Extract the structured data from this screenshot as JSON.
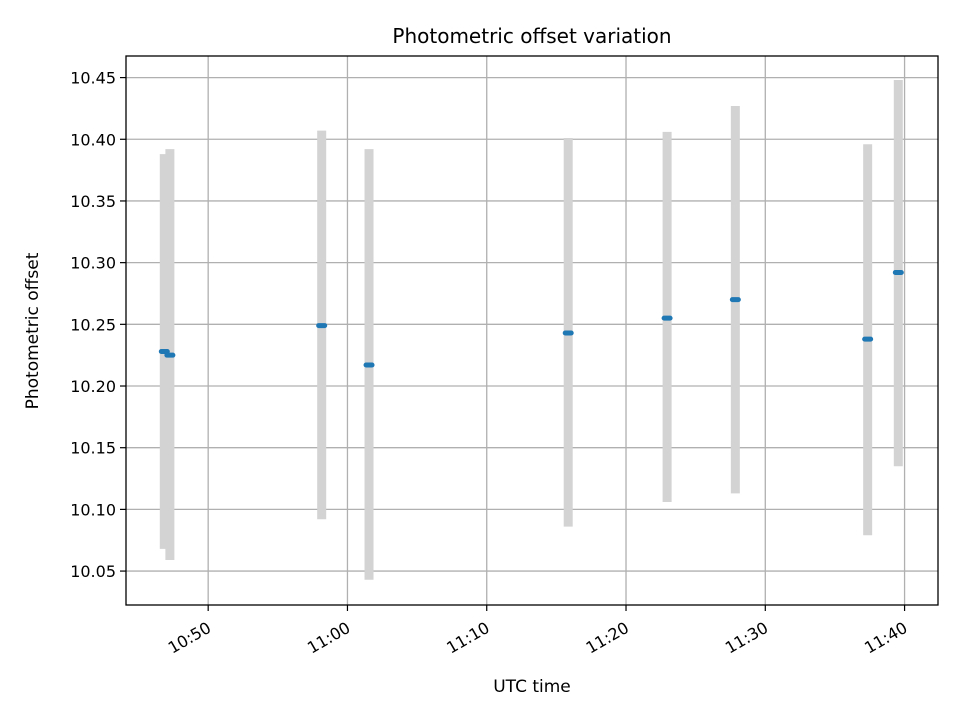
{
  "chart_data": {
    "type": "scatter",
    "title": "Photometric offset variation",
    "xlabel": "UTC time",
    "ylabel": "Photometric offset",
    "x_unit": "minutes since midnight UTC",
    "xlim": [
      644.1,
      702.4
    ],
    "ylim": [
      10.0225,
      10.4675
    ],
    "grid": true,
    "x_ticks": [
      {
        "value": 650,
        "label": "10:50"
      },
      {
        "value": 660,
        "label": "11:00"
      },
      {
        "value": 670,
        "label": "11:10"
      },
      {
        "value": 680,
        "label": "11:20"
      },
      {
        "value": 690,
        "label": "11:30"
      },
      {
        "value": 700,
        "label": "11:40"
      }
    ],
    "y_ticks": [
      {
        "value": 10.05,
        "label": "10.05"
      },
      {
        "value": 10.1,
        "label": "10.10"
      },
      {
        "value": 10.15,
        "label": "10.15"
      },
      {
        "value": 10.2,
        "label": "10.20"
      },
      {
        "value": 10.25,
        "label": "10.25"
      },
      {
        "value": 10.3,
        "label": "10.30"
      },
      {
        "value": 10.35,
        "label": "10.35"
      },
      {
        "value": 10.4,
        "label": "10.40"
      },
      {
        "value": 10.45,
        "label": "10.45"
      }
    ],
    "points": [
      {
        "x": 646.85,
        "y": 10.228,
        "ymin": 10.068,
        "ymax": 10.388
      },
      {
        "x": 647.25,
        "y": 10.225,
        "ymin": 10.059,
        "ymax": 10.392
      },
      {
        "x": 658.15,
        "y": 10.249,
        "ymin": 10.092,
        "ymax": 10.407
      },
      {
        "x": 661.55,
        "y": 10.217,
        "ymin": 10.043,
        "ymax": 10.392
      },
      {
        "x": 675.85,
        "y": 10.243,
        "ymin": 10.086,
        "ymax": 10.401
      },
      {
        "x": 682.95,
        "y": 10.255,
        "ymin": 10.106,
        "ymax": 10.406
      },
      {
        "x": 687.85,
        "y": 10.27,
        "ymin": 10.113,
        "ymax": 10.427
      },
      {
        "x": 697.35,
        "y": 10.238,
        "ymin": 10.079,
        "ymax": 10.396
      },
      {
        "x": 699.55,
        "y": 10.292,
        "ymin": 10.135,
        "ymax": 10.448
      }
    ],
    "colors": {
      "point": "#1f77b4",
      "errorbar": "#d3d3d3",
      "grid": "#b0b0b0"
    }
  }
}
